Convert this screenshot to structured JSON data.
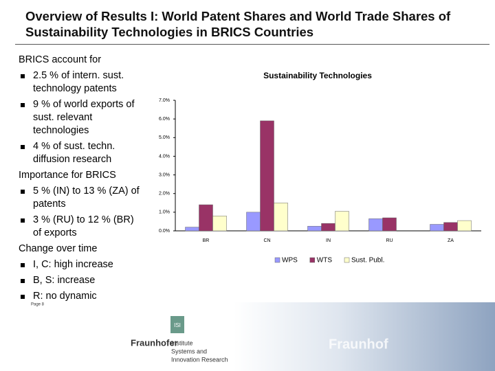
{
  "header": {
    "title": "Overview of Results I: World Patent Shares and World Trade Shares of Sustainability Technologies in BRICS Countries"
  },
  "sections": [
    {
      "heading": "BRICS account for",
      "bullets": [
        "2.5 % of intern. sust. technology patents",
        "9 % of world exports of sust. relevant technologies",
        "4 % of sust. techn. diffusion research"
      ]
    },
    {
      "heading": "Importance for BRICS",
      "bullets": [
        "5 % (IN) to 13 % (ZA) of patents",
        "3 % (RU) to 12 % (BR) of exports"
      ]
    },
    {
      "heading": "Change over time",
      "bullets": [
        "I, C: high increase",
        "B, S: increase",
        "R: no dynamic"
      ]
    }
  ],
  "chart_data": {
    "type": "bar",
    "title": "Sustainability Technologies",
    "categories": [
      "BR",
      "CN",
      "IN",
      "RU",
      "ZA"
    ],
    "series": [
      {
        "name": "WPS",
        "color": "#9999ff",
        "values": [
          0.2,
          1.0,
          0.25,
          0.65,
          0.35
        ]
      },
      {
        "name": "WTS",
        "color": "#993366",
        "values": [
          1.4,
          5.9,
          0.4,
          0.7,
          0.45
        ]
      },
      {
        "name": "Sust. Publ.",
        "color": "#ffffcc",
        "values": [
          0.8,
          1.5,
          1.05,
          0,
          0.55
        ]
      }
    ],
    "ylim": [
      0,
      7
    ],
    "yticks": [
      {
        "value": 0,
        "label": "0.0%"
      },
      {
        "value": 1,
        "label": "1.0%"
      },
      {
        "value": 2,
        "label": "2.0%"
      },
      {
        "value": 3,
        "label": "3.0%"
      },
      {
        "value": 4,
        "label": "4.0%"
      },
      {
        "value": 5,
        "label": "5.0%"
      },
      {
        "value": 6,
        "label": "6.0%"
      },
      {
        "value": 7,
        "label": "7.0%"
      }
    ],
    "grid": false,
    "legend": "bottom"
  },
  "footer": {
    "page": "Page 8",
    "logo_mark": "ISI",
    "brand": "Fraunhofer",
    "institute": [
      "Institute",
      "Systems and",
      "Innovation Research"
    ],
    "image_text": "Fraunhof"
  }
}
